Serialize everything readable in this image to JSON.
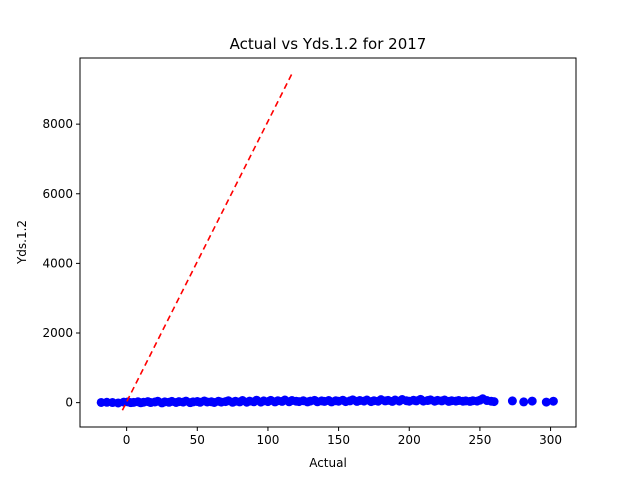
{
  "chart_data": {
    "type": "scatter",
    "title": "Actual vs Yds.1.2 for 2017",
    "xlabel": "Actual",
    "ylabel": "Yds.1.2",
    "xlim": [
      -33,
      318
    ],
    "ylim": [
      -700,
      9900
    ],
    "x_ticks": [
      0,
      50,
      100,
      150,
      200,
      250,
      300
    ],
    "y_ticks": [
      0,
      2000,
      4000,
      6000,
      8000
    ],
    "grid": false,
    "colors": {
      "points": "#0000ff",
      "line": "#ff0000"
    },
    "scatter_summary": {
      "x_range": [
        -18,
        302
      ],
      "y_range": [
        -20,
        120
      ],
      "description": "Dense band of points near y = 0 across the full x range"
    },
    "scatter_points": [
      [
        -18,
        5
      ],
      [
        -14,
        10
      ],
      [
        -10,
        2
      ],
      [
        -6,
        -10
      ],
      [
        -2,
        15
      ],
      [
        1,
        20
      ],
      [
        3,
        0
      ],
      [
        5,
        8
      ],
      [
        8,
        25
      ],
      [
        10,
        -5
      ],
      [
        12,
        12
      ],
      [
        15,
        30
      ],
      [
        17,
        2
      ],
      [
        20,
        18
      ],
      [
        22,
        40
      ],
      [
        25,
        -8
      ],
      [
        27,
        22
      ],
      [
        30,
        10
      ],
      [
        32,
        35
      ],
      [
        35,
        5
      ],
      [
        37,
        28
      ],
      [
        40,
        15
      ],
      [
        42,
        45
      ],
      [
        45,
        0
      ],
      [
        47,
        20
      ],
      [
        50,
        32
      ],
      [
        52,
        10
      ],
      [
        55,
        48
      ],
      [
        57,
        18
      ],
      [
        60,
        25
      ],
      [
        62,
        5
      ],
      [
        65,
        40
      ],
      [
        67,
        15
      ],
      [
        70,
        30
      ],
      [
        72,
        55
      ],
      [
        75,
        10
      ],
      [
        77,
        38
      ],
      [
        80,
        20
      ],
      [
        82,
        60
      ],
      [
        85,
        12
      ],
      [
        87,
        42
      ],
      [
        90,
        25
      ],
      [
        92,
        70
      ],
      [
        95,
        15
      ],
      [
        97,
        50
      ],
      [
        100,
        30
      ],
      [
        102,
        65
      ],
      [
        105,
        20
      ],
      [
        107,
        55
      ],
      [
        110,
        35
      ],
      [
        112,
        75
      ],
      [
        115,
        25
      ],
      [
        117,
        60
      ],
      [
        120,
        40
      ],
      [
        122,
        30
      ],
      [
        125,
        55
      ],
      [
        128,
        20
      ],
      [
        130,
        45
      ],
      [
        133,
        65
      ],
      [
        135,
        25
      ],
      [
        138,
        50
      ],
      [
        140,
        35
      ],
      [
        143,
        60
      ],
      [
        145,
        20
      ],
      [
        148,
        55
      ],
      [
        150,
        40
      ],
      [
        153,
        70
      ],
      [
        155,
        30
      ],
      [
        158,
        50
      ],
      [
        160,
        80
      ],
      [
        163,
        35
      ],
      [
        165,
        60
      ],
      [
        168,
        45
      ],
      [
        170,
        75
      ],
      [
        173,
        30
      ],
      [
        175,
        55
      ],
      [
        178,
        40
      ],
      [
        180,
        85
      ],
      [
        183,
        50
      ],
      [
        185,
        65
      ],
      [
        188,
        35
      ],
      [
        190,
        75
      ],
      [
        193,
        45
      ],
      [
        195,
        90
      ],
      [
        198,
        55
      ],
      [
        200,
        40
      ],
      [
        203,
        70
      ],
      [
        205,
        50
      ],
      [
        208,
        95
      ],
      [
        210,
        45
      ],
      [
        213,
        60
      ],
      [
        215,
        80
      ],
      [
        218,
        40
      ],
      [
        220,
        65
      ],
      [
        223,
        50
      ],
      [
        225,
        75
      ],
      [
        228,
        35
      ],
      [
        230,
        55
      ],
      [
        233,
        45
      ],
      [
        235,
        60
      ],
      [
        238,
        40
      ],
      [
        240,
        50
      ],
      [
        243,
        35
      ],
      [
        245,
        55
      ],
      [
        248,
        45
      ],
      [
        250,
        70
      ],
      [
        252,
        110
      ],
      [
        255,
        60
      ],
      [
        258,
        40
      ],
      [
        260,
        30
      ],
      [
        273,
        50
      ],
      [
        281,
        20
      ],
      [
        287,
        45
      ],
      [
        297,
        15
      ],
      [
        302,
        40
      ]
    ],
    "trend_line": {
      "style": "dashed",
      "points": [
        [
          -3,
          -220
        ],
        [
          117,
          9450
        ]
      ]
    }
  }
}
